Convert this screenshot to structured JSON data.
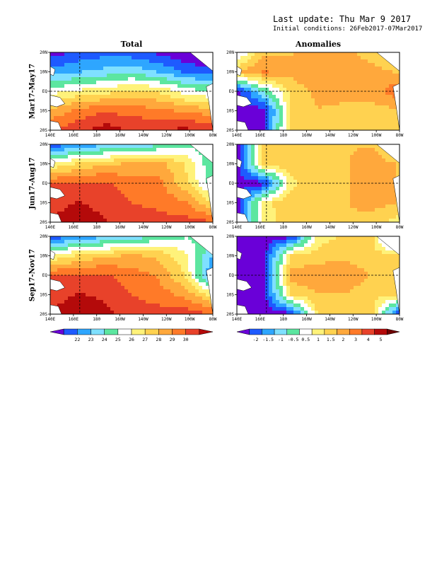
{
  "header": {
    "last_update": "Last update: Thu Mar 9 2017",
    "initial_conditions": "Initial conditions: 26Feb2017-07Mar2017"
  },
  "columns": [
    "Total",
    "Anomalies"
  ],
  "rows": [
    "Mar17-May17",
    "Jun17-Aug17",
    "Sep17-Nov17"
  ],
  "chart_data": [
    {
      "type": "heatmap",
      "title": "Total",
      "x_ticks": [
        "140E",
        "160E",
        "180",
        "160W",
        "140W",
        "120W",
        "100W",
        "80W"
      ],
      "y_ticks": [
        "20N",
        "10N",
        "EQ",
        "10S",
        "20S"
      ],
      "xlim": [
        "140E",
        "80W"
      ],
      "ylim": [
        "20S",
        "20N"
      ],
      "colorbar": {
        "labels": [
          "22",
          "23",
          "24",
          "25",
          "26",
          "27",
          "28",
          "29",
          "30"
        ],
        "colors": [
          "#6a00d8",
          "#1e5aff",
          "#2ea6ff",
          "#7fe0ff",
          "#5ce6a0",
          "#ffffff",
          "#fff27a",
          "#ffd250",
          "#ffa83c",
          "#ff7a28",
          "#e8422a",
          "#b40a0a"
        ]
      },
      "panels": [
        {
          "period": "Mar17-May17",
          "levels": [
            [
              0.0,
              0.18,
              0.46,
              0.7,
              0.86
            ],
            [
              0.06,
              0.22,
              0.52,
              0.8,
              0.92
            ],
            [
              0.1,
              0.26,
              0.55,
              0.86,
              1.0
            ],
            [
              0.08,
              0.3,
              0.62,
              0.82,
              0.95
            ],
            [
              0.02,
              0.22,
              0.58,
              0.8,
              0.96
            ],
            [
              -0.05,
              0.12,
              0.46,
              0.75,
              0.98
            ],
            [
              -0.1,
              0.08,
              0.4,
              0.72,
              0.93
            ]
          ]
        },
        {
          "period": "Jun17-Aug17",
          "levels": [
            [
              0.05,
              0.5,
              0.86,
              0.92,
              0.96
            ],
            [
              0.16,
              0.6,
              0.88,
              0.96,
              1.0
            ],
            [
              0.2,
              0.66,
              0.88,
              0.93,
              0.96
            ],
            [
              0.22,
              0.7,
              0.82,
              0.86,
              0.92
            ],
            [
              0.3,
              0.72,
              0.8,
              0.84,
              0.9
            ],
            [
              0.38,
              0.58,
              0.62,
              0.78,
              0.9
            ],
            [
              0.38,
              0.32,
              0.35,
              0.58,
              0.88
            ]
          ]
        },
        {
          "period": "Sep17-Nov17",
          "levels": [
            [
              0.05,
              0.5,
              0.86,
              0.92,
              0.96
            ],
            [
              0.16,
              0.6,
              0.88,
              0.96,
              1.0
            ],
            [
              0.2,
              0.66,
              0.88,
              0.94,
              0.98
            ],
            [
              0.24,
              0.7,
              0.82,
              0.86,
              0.92
            ],
            [
              0.35,
              0.66,
              0.76,
              0.82,
              0.9
            ],
            [
              0.4,
              0.52,
              0.58,
              0.74,
              0.92
            ],
            [
              0.38,
              0.22,
              0.1,
              0.55,
              0.86
            ]
          ]
        }
      ]
    },
    {
      "type": "heatmap",
      "title": "Anomalies",
      "x_ticks": [
        "140E",
        "160E",
        "180",
        "160W",
        "140W",
        "120W",
        "100W",
        "80W"
      ],
      "y_ticks": [
        "20N",
        "10N",
        "EQ",
        "10S",
        "20S"
      ],
      "xlim": [
        "140E",
        "80W"
      ],
      "ylim": [
        "20S",
        "20N"
      ],
      "colorbar": {
        "labels": [
          "-2",
          "-1.5",
          "-1",
          "-0.5",
          "0.5",
          "1",
          "1.5",
          "2",
          "3",
          "4",
          "5"
        ],
        "colors": [
          "#6a00d8",
          "#1e5aff",
          "#2ea6ff",
          "#7fe0ff",
          "#5ce6a0",
          "#ffffff",
          "#fff27a",
          "#ffd250",
          "#ffa83c",
          "#ff7a28",
          "#e8422a",
          "#b40a0a",
          "#6e0000"
        ]
      },
      "panels": [
        {
          "period": "Mar17-May17",
          "levels": [
            [
              0.35,
              0.62,
              0.0,
              0.0,
              0.0
            ],
            [
              0.6,
              0.72,
              0.3,
              0.0,
              0.0
            ],
            [
              0.62,
              0.66,
              0.56,
              0.55,
              0.6
            ],
            [
              0.64,
              0.7,
              0.66,
              0.62,
              0.62
            ],
            [
              0.64,
              0.66,
              0.66,
              0.6,
              0.6
            ],
            [
              0.6,
              0.64,
              0.66,
              0.6,
              0.62
            ],
            [
              0.58,
              0.62,
              0.78,
              0.6,
              0.6
            ]
          ]
        },
        {
          "period": "Jun17-Aug17",
          "levels": [
            [
              0.0,
              0.0,
              0.0,
              0.0,
              0.0
            ],
            [
              0.58,
              0.58,
              0.0,
              0.5,
              0.5
            ],
            [
              0.62,
              0.62,
              0.5,
              0.62,
              0.6
            ],
            [
              0.62,
              0.62,
              0.62,
              0.62,
              0.62
            ],
            [
              0.62,
              0.62,
              0.62,
              0.62,
              0.62
            ],
            [
              0.62,
              0.66,
              0.66,
              0.66,
              0.58
            ],
            [
              0.5,
              0.62,
              0.62,
              0.62,
              0.5
            ]
          ]
        },
        {
          "period": "Sep17-Nov17",
          "levels": [
            [
              0.0,
              0.0,
              0.0,
              0.0,
              0.0
            ],
            [
              0.0,
              0.0,
              0.0,
              0.0,
              0.0
            ],
            [
              0.0,
              0.55,
              0.66,
              0.55,
              0.0
            ],
            [
              0.5,
              0.58,
              0.7,
              0.62,
              0.55
            ],
            [
              0.56,
              0.6,
              0.68,
              0.62,
              0.56
            ],
            [
              0.56,
              0.58,
              0.62,
              0.58,
              0.55
            ],
            [
              0.0,
              0.56,
              0.56,
              0.56,
              0.0
            ]
          ]
        }
      ]
    }
  ]
}
